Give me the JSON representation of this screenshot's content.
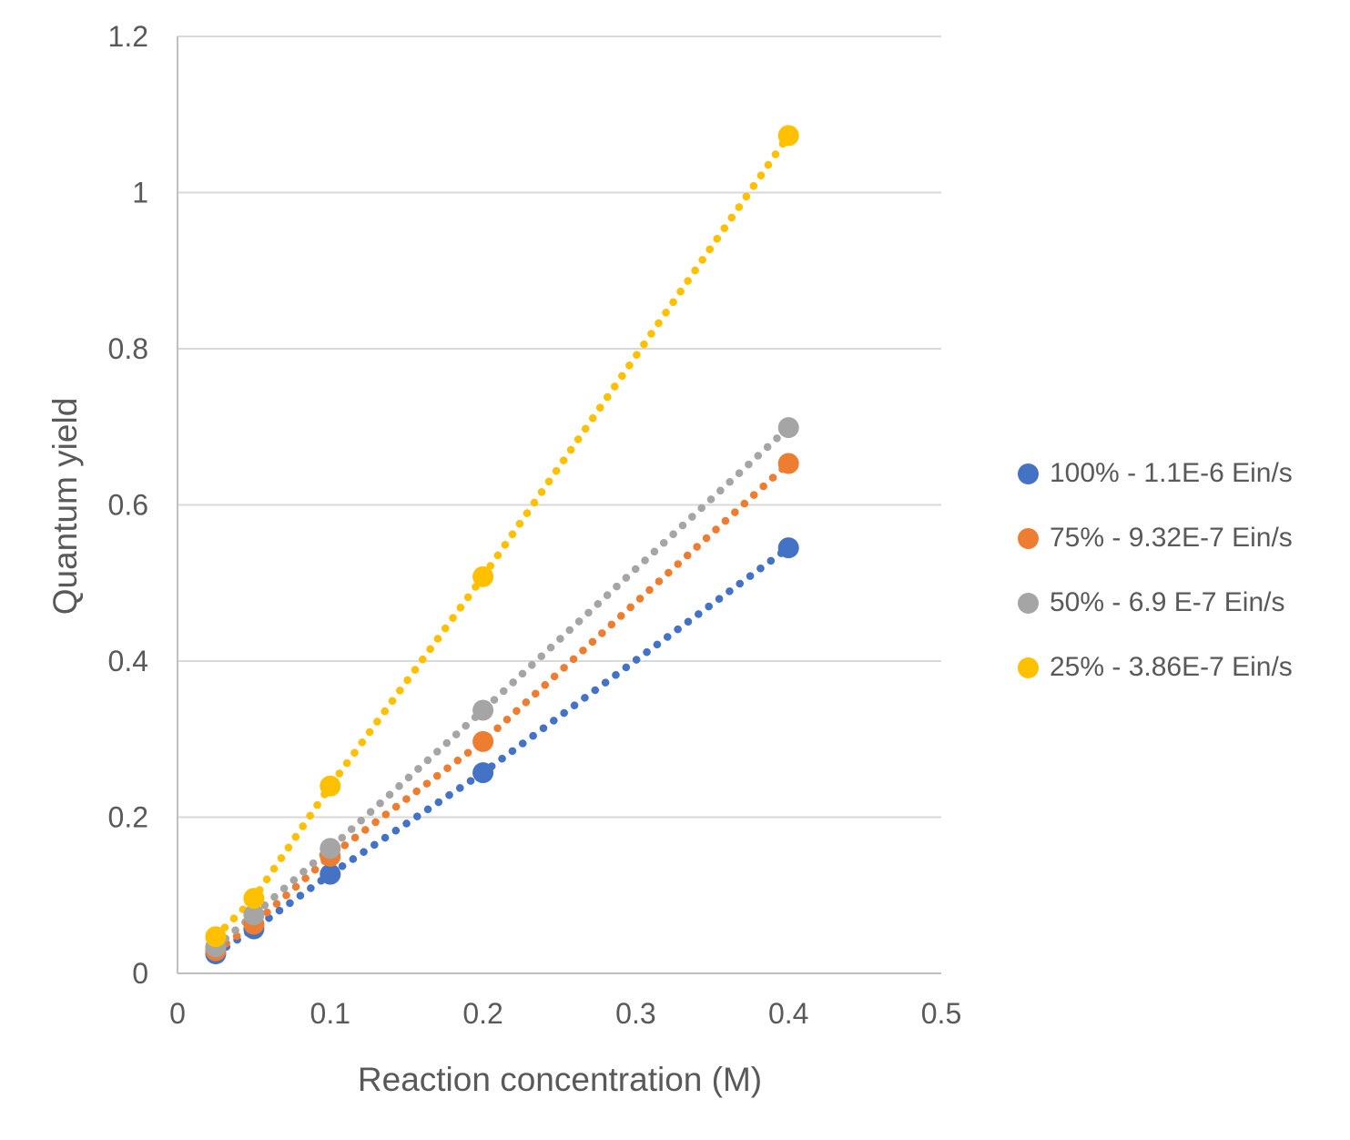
{
  "chart_data": {
    "type": "scatter",
    "title": "",
    "xlabel": "Reaction concentration (M)",
    "ylabel": "Quantum yield",
    "xlim": [
      0,
      0.5
    ],
    "ylim": [
      0,
      1.2
    ],
    "x_ticks": [
      0,
      0.1,
      0.2,
      0.3,
      0.4,
      0.5
    ],
    "x_tick_labels": [
      "0",
      "0.1",
      "0.2",
      "0.3",
      "0.4",
      "0.5"
    ],
    "y_ticks": [
      0,
      0.2,
      0.4,
      0.6,
      0.8,
      1,
      1.2
    ],
    "y_tick_labels": [
      "0",
      "0.2",
      "0.4",
      "0.6",
      "0.8",
      "1",
      "1.2"
    ],
    "grid": "horizontal",
    "gridline_color": "#D9D9D9",
    "axis_line_color": "#BFBFBF",
    "text_color": "#595959",
    "legend_position": "right",
    "marker_style": "filled-circle-with-dotted-trendline",
    "x": [
      0.025,
      0.05,
      0.1,
      0.2,
      0.4
    ],
    "series": [
      {
        "name": "100% - 1.1E-6 Ein/s",
        "color": "#4472C4",
        "values": [
          0.025,
          0.057,
          0.127,
          0.257,
          0.545
        ]
      },
      {
        "name": "75% - 9.32E-7 Ein/s",
        "color": "#ED7D31",
        "values": [
          0.029,
          0.063,
          0.15,
          0.297,
          0.653
        ]
      },
      {
        "name": "50% - 6.9 E-7 Ein/s",
        "color": "#A5A5A5",
        "values": [
          0.034,
          0.075,
          0.16,
          0.337,
          0.699
        ]
      },
      {
        "name": "25% - 3.86E-7 Ein/s",
        "color": "#FFC000",
        "values": [
          0.047,
          0.096,
          0.24,
          0.508,
          1.073
        ]
      }
    ]
  }
}
